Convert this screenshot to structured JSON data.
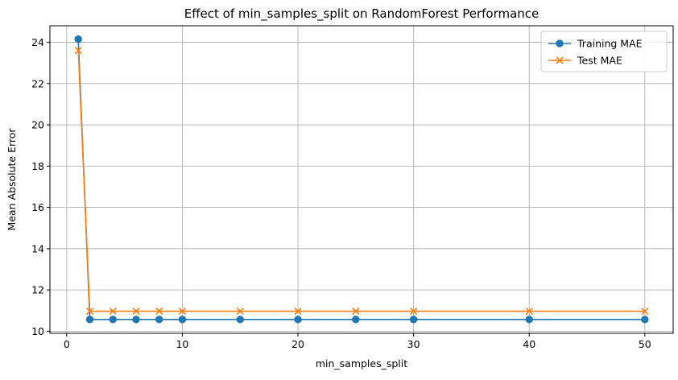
{
  "chart_data": {
    "type": "line",
    "title": "Effect of min_samples_split on RandomForest Performance",
    "xlabel": "min_samples_split",
    "ylabel": "Mean Absolute Error",
    "xlim": [
      -1.45,
      52.45
    ],
    "ylim": [
      9.9,
      24.8
    ],
    "xticks": [
      0,
      10,
      20,
      30,
      40,
      50
    ],
    "yticks": [
      10,
      12,
      14,
      16,
      18,
      20,
      22,
      24
    ],
    "grid": true,
    "legend_position": "top-right",
    "x": [
      1,
      2,
      4,
      6,
      8,
      10,
      15,
      20,
      25,
      30,
      40,
      50
    ],
    "series": [
      {
        "name": "Training MAE",
        "color": "#1f77b4",
        "marker": "circle",
        "values": [
          24.15,
          10.57,
          10.57,
          10.57,
          10.57,
          10.57,
          10.57,
          10.57,
          10.57,
          10.57,
          10.57,
          10.57
        ]
      },
      {
        "name": "Test MAE",
        "color": "#ff7f0e",
        "marker": "x",
        "values": [
          23.6,
          10.97,
          10.97,
          10.97,
          10.97,
          10.97,
          10.97,
          10.97,
          10.97,
          10.97,
          10.97,
          10.97
        ]
      }
    ]
  }
}
